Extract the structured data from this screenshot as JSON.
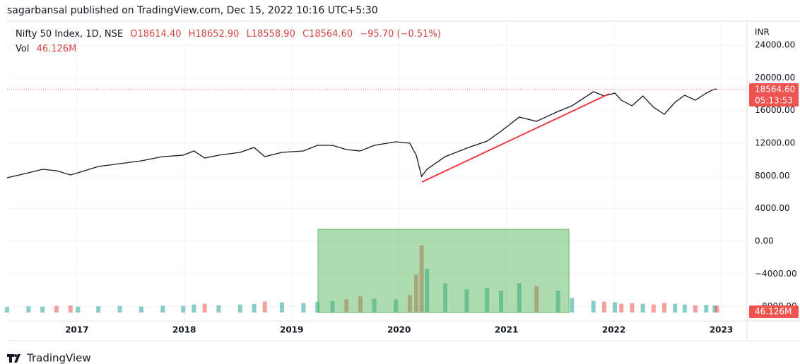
{
  "header": {
    "publisher": "sagarbansal published on TradingView.com, Dec 15, 2022 10:16 UTC+5:30"
  },
  "chart_data": {
    "type": "line",
    "x": [
      2016.35,
      2016.55,
      2016.68,
      2016.81,
      2016.94,
      2017.01,
      2017.2,
      2017.4,
      2017.6,
      2017.8,
      2017.99,
      2018.09,
      2018.19,
      2018.32,
      2018.52,
      2018.65,
      2018.75,
      2018.91,
      2019.11,
      2019.24,
      2019.38,
      2019.51,
      2019.64,
      2019.77,
      2019.97,
      2020.1,
      2020.16,
      2020.21,
      2020.26,
      2020.43,
      2020.63,
      2020.82,
      2020.95,
      2021.12,
      2021.28,
      2021.48,
      2021.61,
      2021.81,
      2021.91,
      2022.01,
      2022.07,
      2022.17,
      2022.27,
      2022.37,
      2022.47,
      2022.57,
      2022.66,
      2022.76,
      2022.86,
      2022.94,
      2022.96
    ],
    "series": [
      {
        "name": "Nifty 50 Index, 1D, NSE",
        "color": "#131722",
        "values": [
          7770,
          8375,
          8806,
          8633,
          8115,
          8375,
          9151,
          9497,
          9842,
          10360,
          10533,
          11050,
          10187,
          10533,
          10878,
          11482,
          10360,
          10878,
          11050,
          11741,
          11741,
          11223,
          11050,
          11741,
          12173,
          12000,
          10533,
          7943,
          8806,
          10360,
          11396,
          12259,
          13468,
          15195,
          14677,
          15885,
          16576,
          18302,
          17784,
          18130,
          17266,
          16576,
          17784,
          16403,
          15540,
          17007,
          17870,
          17266,
          18130,
          18647,
          18564.6
        ]
      },
      {
        "name": "Vol",
        "type": "bar",
        "axis": "y2",
        "color": "#26a69a",
        "down_color": "#ef5350",
        "values": [
          38,
          42,
          40,
          45,
          48,
          40,
          42,
          44,
          40,
          46,
          45,
          55,
          60,
          50,
          55,
          58,
          75,
          70,
          65,
          75,
          80,
          90,
          110,
          95,
          90,
          120,
          260,
          460,
          300,
          200,
          160,
          170,
          150,
          200,
          180,
          150,
          100,
          80,
          75,
          70,
          60,
          65,
          60,
          55,
          65,
          60,
          55,
          50,
          52,
          48,
          46.126
        ]
      }
    ],
    "ohlc": [
      "O18614.40",
      "H18652.90",
      "L18558.90",
      "C18564.60"
    ],
    "change": "−95.70 (−0.51%)",
    "volume_label": "46.126M",
    "price_label": "18564.60",
    "countdown": "05:13:53",
    "currency": "INR",
    "xlim": [
      2016.35,
      2023.24
    ],
    "xticks": [
      2017,
      2018,
      2019,
      2020,
      2021,
      2022,
      2023
    ],
    "ylim": [
      -9760,
      26940
    ],
    "yticks": [
      {
        "value": 24000,
        "label": "24000.00"
      },
      {
        "value": 20000,
        "label": "20000.00"
      },
      {
        "value": 16000,
        "label": "16000.00"
      },
      {
        "value": 12000,
        "label": "12000.00"
      },
      {
        "value": 8000,
        "label": "8000.00"
      },
      {
        "value": 4000,
        "label": "4000.00"
      },
      {
        "value": 0,
        "label": "0.00"
      },
      {
        "value": -4000,
        "label": "−4000.00"
      },
      {
        "value": -8000,
        "label": "−8000.00"
      }
    ],
    "y2lim": [
      0,
      2000
    ],
    "grid": true
  },
  "footer": {
    "logo": "TradingView"
  }
}
